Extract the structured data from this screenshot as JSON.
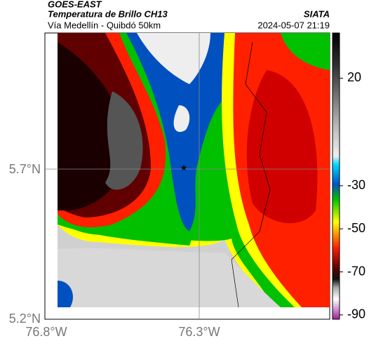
{
  "header": {
    "satellite": "GOES-EAST",
    "title": "Temperatura de Brillo CH13",
    "source": "SIATA",
    "location": "Vía Medellín - Quibdó 50km",
    "datetime": "2024-05-07 21:19"
  },
  "map": {
    "lat_labels": [
      "5.7°N",
      "5.2°N"
    ],
    "lon_labels": [
      "76.8°W",
      "76.3°W"
    ]
  },
  "colorbar": {
    "range": [
      41,
      -92
    ],
    "ticks": [
      20,
      -30,
      -50,
      -70,
      -90
    ]
  }
}
